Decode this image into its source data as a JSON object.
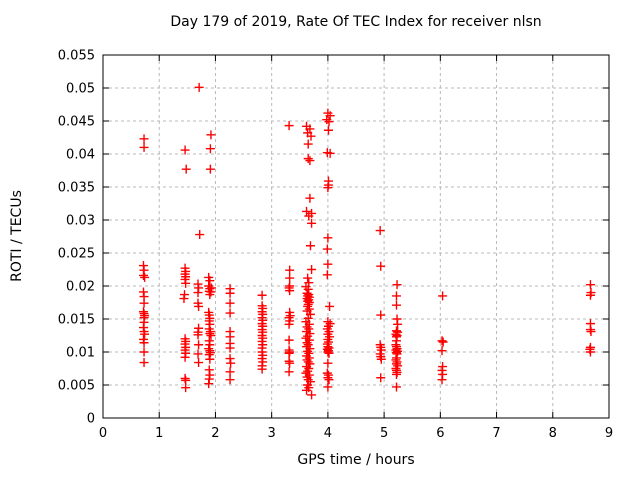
{
  "chart_data": {
    "type": "scatter",
    "title": "Day 179 of 2019, Rate Of TEC Index for receiver nlsn",
    "xlabel": "GPS time / hours",
    "ylabel": "ROTI / TECUs",
    "xlim": [
      0,
      9
    ],
    "ylim": [
      0,
      0.055
    ],
    "x_ticks": [
      "0",
      "1",
      "2",
      "3",
      "4",
      "5",
      "6",
      "7",
      "8",
      "9"
    ],
    "y_ticks": [
      "0",
      "0.005",
      "0.01",
      "0.015",
      "0.02",
      "0.025",
      "0.03",
      "0.035",
      "0.04",
      "0.045",
      "0.05",
      "0.055"
    ],
    "grid": "dashed",
    "legend_position": "none",
    "marker": "plus",
    "marker_color": "#ff0000",
    "grid_color": "#b8b8b8",
    "border_color": "#000000",
    "series": [
      {
        "name": "ROTI",
        "points": [
          [
            0.73,
            0.0423
          ],
          [
            0.73,
            0.041
          ],
          [
            0.72,
            0.0231
          ],
          [
            0.73,
            0.0224
          ],
          [
            0.72,
            0.0216
          ],
          [
            0.74,
            0.0213
          ],
          [
            0.72,
            0.0191
          ],
          [
            0.73,
            0.0184
          ],
          [
            0.73,
            0.0174
          ],
          [
            0.72,
            0.0161
          ],
          [
            0.73,
            0.0158
          ],
          [
            0.74,
            0.0155
          ],
          [
            0.73,
            0.0152
          ],
          [
            0.73,
            0.0145
          ],
          [
            0.72,
            0.0137
          ],
          [
            0.73,
            0.0131
          ],
          [
            0.74,
            0.0127
          ],
          [
            0.72,
            0.0119
          ],
          [
            0.73,
            0.0114
          ],
          [
            0.73,
            0.01
          ],
          [
            0.73,
            0.0084
          ],
          [
            1.46,
            0.0406
          ],
          [
            1.48,
            0.0377
          ],
          [
            1.46,
            0.0227
          ],
          [
            1.47,
            0.0222
          ],
          [
            1.46,
            0.0218
          ],
          [
            1.47,
            0.0214
          ],
          [
            1.46,
            0.021
          ],
          [
            1.47,
            0.0204
          ],
          [
            1.45,
            0.0187
          ],
          [
            1.44,
            0.0181
          ],
          [
            1.46,
            0.012
          ],
          [
            1.47,
            0.0116
          ],
          [
            1.46,
            0.0112
          ],
          [
            1.47,
            0.0107
          ],
          [
            1.46,
            0.0103
          ],
          [
            1.47,
            0.0098
          ],
          [
            1.46,
            0.0092
          ],
          [
            1.46,
            0.006
          ],
          [
            1.47,
            0.0057
          ],
          [
            1.47,
            0.0046
          ],
          [
            1.71,
            0.0501
          ],
          [
            1.72,
            0.0278
          ],
          [
            1.69,
            0.0203
          ],
          [
            1.7,
            0.0197
          ],
          [
            1.69,
            0.019
          ],
          [
            1.69,
            0.0174
          ],
          [
            1.7,
            0.0169
          ],
          [
            1.7,
            0.0136
          ],
          [
            1.69,
            0.013
          ],
          [
            1.69,
            0.0126
          ],
          [
            1.7,
            0.0111
          ],
          [
            1.69,
            0.0097
          ],
          [
            1.7,
            0.0084
          ],
          [
            1.92,
            0.0429
          ],
          [
            1.91,
            0.0408
          ],
          [
            1.91,
            0.0377
          ],
          [
            1.88,
            0.0213
          ],
          [
            1.9,
            0.0208
          ],
          [
            1.88,
            0.02
          ],
          [
            1.93,
            0.0197
          ],
          [
            1.9,
            0.0196
          ],
          [
            1.89,
            0.0192
          ],
          [
            1.92,
            0.0191
          ],
          [
            1.9,
            0.0187
          ],
          [
            1.88,
            0.016
          ],
          [
            1.89,
            0.0156
          ],
          [
            1.9,
            0.0151
          ],
          [
            1.89,
            0.0147
          ],
          [
            1.9,
            0.0142
          ],
          [
            1.89,
            0.0135
          ],
          [
            1.91,
            0.0131
          ],
          [
            1.9,
            0.0128
          ],
          [
            1.92,
            0.0125
          ],
          [
            1.89,
            0.0117
          ],
          [
            1.9,
            0.0111
          ],
          [
            1.88,
            0.0105
          ],
          [
            1.9,
            0.0102
          ],
          [
            1.91,
            0.0099
          ],
          [
            1.89,
            0.0096
          ],
          [
            1.9,
            0.0089
          ],
          [
            1.89,
            0.0073
          ],
          [
            1.9,
            0.0065
          ],
          [
            1.89,
            0.0059
          ],
          [
            1.88,
            0.0052
          ],
          [
            2.26,
            0.0196
          ],
          [
            2.26,
            0.0189
          ],
          [
            2.26,
            0.0174
          ],
          [
            2.26,
            0.0159
          ],
          [
            2.26,
            0.0131
          ],
          [
            2.26,
            0.0123
          ],
          [
            2.26,
            0.0113
          ],
          [
            2.26,
            0.0106
          ],
          [
            2.26,
            0.009
          ],
          [
            2.27,
            0.0083
          ],
          [
            2.26,
            0.007
          ],
          [
            2.26,
            0.0058
          ],
          [
            2.83,
            0.0186
          ],
          [
            2.83,
            0.017
          ],
          [
            2.84,
            0.0166
          ],
          [
            2.83,
            0.0161
          ],
          [
            2.84,
            0.0157
          ],
          [
            2.83,
            0.0152
          ],
          [
            2.84,
            0.0148
          ],
          [
            2.83,
            0.0143
          ],
          [
            2.84,
            0.0139
          ],
          [
            2.83,
            0.0134
          ],
          [
            2.84,
            0.013
          ],
          [
            2.83,
            0.0125
          ],
          [
            2.84,
            0.0121
          ],
          [
            2.83,
            0.0116
          ],
          [
            2.84,
            0.0111
          ],
          [
            2.83,
            0.0106
          ],
          [
            2.83,
            0.01
          ],
          [
            2.84,
            0.0095
          ],
          [
            2.83,
            0.009
          ],
          [
            2.84,
            0.0085
          ],
          [
            2.83,
            0.0079
          ],
          [
            2.83,
            0.0074
          ],
          [
            3.31,
            0.0443
          ],
          [
            3.32,
            0.0224
          ],
          [
            3.32,
            0.0212
          ],
          [
            3.32,
            0.02
          ],
          [
            3.31,
            0.0197
          ],
          [
            3.32,
            0.0193
          ],
          [
            3.32,
            0.016
          ],
          [
            3.33,
            0.0155
          ],
          [
            3.31,
            0.0152
          ],
          [
            3.32,
            0.0147
          ],
          [
            3.31,
            0.0142
          ],
          [
            3.31,
            0.0118
          ],
          [
            3.31,
            0.0103
          ],
          [
            3.32,
            0.01
          ],
          [
            3.31,
            0.0098
          ],
          [
            3.31,
            0.0086
          ],
          [
            3.32,
            0.0083
          ],
          [
            3.31,
            0.007
          ],
          [
            3.62,
            0.0442
          ],
          [
            3.68,
            0.0438
          ],
          [
            3.64,
            0.0432
          ],
          [
            3.7,
            0.0427
          ],
          [
            3.65,
            0.0415
          ],
          [
            3.65,
            0.0393
          ],
          [
            3.68,
            0.039
          ],
          [
            3.68,
            0.0333
          ],
          [
            3.62,
            0.0313
          ],
          [
            3.71,
            0.031
          ],
          [
            3.66,
            0.0306
          ],
          [
            3.71,
            0.0295
          ],
          [
            3.69,
            0.0261
          ],
          [
            3.71,
            0.0225
          ],
          [
            3.64,
            0.0212
          ],
          [
            3.66,
            0.0205
          ],
          [
            3.61,
            0.0199
          ],
          [
            3.65,
            0.0195
          ],
          [
            3.63,
            0.0189
          ],
          [
            3.66,
            0.0187
          ],
          [
            3.64,
            0.0185
          ],
          [
            3.67,
            0.0183
          ],
          [
            3.63,
            0.0181
          ],
          [
            3.66,
            0.0179
          ],
          [
            3.64,
            0.0177
          ],
          [
            3.67,
            0.0175
          ],
          [
            3.65,
            0.0172
          ],
          [
            3.64,
            0.0169
          ],
          [
            3.67,
            0.0165
          ],
          [
            3.63,
            0.0162
          ],
          [
            3.69,
            0.0157
          ],
          [
            3.65,
            0.0151
          ],
          [
            3.61,
            0.0146
          ],
          [
            3.67,
            0.0142
          ],
          [
            3.63,
            0.0138
          ],
          [
            3.66,
            0.0135
          ],
          [
            3.62,
            0.0131
          ],
          [
            3.68,
            0.0128
          ],
          [
            3.64,
            0.0124
          ],
          [
            3.61,
            0.0121
          ],
          [
            3.67,
            0.0118
          ],
          [
            3.63,
            0.0114
          ],
          [
            3.65,
            0.0111
          ],
          [
            3.62,
            0.0108
          ],
          [
            3.68,
            0.0105
          ],
          [
            3.64,
            0.0101
          ],
          [
            3.66,
            0.0098
          ],
          [
            3.62,
            0.0094
          ],
          [
            3.67,
            0.0091
          ],
          [
            3.63,
            0.0088
          ],
          [
            3.65,
            0.0085
          ],
          [
            3.68,
            0.0082
          ],
          [
            3.62,
            0.0078
          ],
          [
            3.66,
            0.0075
          ],
          [
            3.64,
            0.0071
          ],
          [
            3.61,
            0.0068
          ],
          [
            3.67,
            0.0065
          ],
          [
            3.63,
            0.0062
          ],
          [
            3.65,
            0.0058
          ],
          [
            3.69,
            0.0055
          ],
          [
            3.64,
            0.005
          ],
          [
            3.66,
            0.0046
          ],
          [
            3.62,
            0.0042
          ],
          [
            3.71,
            0.0035
          ],
          [
            4.0,
            0.0462
          ],
          [
            4.04,
            0.0458
          ],
          [
            3.98,
            0.0452
          ],
          [
            4.02,
            0.0449
          ],
          [
            4.01,
            0.0436
          ],
          [
            3.99,
            0.0402
          ],
          [
            4.04,
            0.0401
          ],
          [
            4.01,
            0.0359
          ],
          [
            4.01,
            0.0353
          ],
          [
            4.0,
            0.0349
          ],
          [
            4.0,
            0.0273
          ],
          [
            3.99,
            0.0256
          ],
          [
            4.0,
            0.0233
          ],
          [
            3.99,
            0.0217
          ],
          [
            4.03,
            0.0169
          ],
          [
            4.0,
            0.0146
          ],
          [
            4.04,
            0.0143
          ],
          [
            4.01,
            0.0139
          ],
          [
            3.99,
            0.0135
          ],
          [
            4.02,
            0.0131
          ],
          [
            4.0,
            0.0127
          ],
          [
            4.03,
            0.0123
          ],
          [
            4.0,
            0.0119
          ],
          [
            4.01,
            0.0115
          ],
          [
            3.99,
            0.0112
          ],
          [
            4.0,
            0.0108
          ],
          [
            4.02,
            0.0106
          ],
          [
            3.99,
            0.0104
          ],
          [
            4.01,
            0.0102
          ],
          [
            4.0,
            0.01
          ],
          [
            4.02,
            0.0098
          ],
          [
            4.0,
            0.0083
          ],
          [
            3.99,
            0.0068
          ],
          [
            4.01,
            0.0065
          ],
          [
            4.0,
            0.0061
          ],
          [
            4.02,
            0.0058
          ],
          [
            4.0,
            0.0047
          ],
          [
            4.93,
            0.0284
          ],
          [
            4.94,
            0.023
          ],
          [
            4.94,
            0.0156
          ],
          [
            4.93,
            0.0111
          ],
          [
            4.94,
            0.0107
          ],
          [
            4.95,
            0.0103
          ],
          [
            4.93,
            0.0097
          ],
          [
            4.94,
            0.0093
          ],
          [
            4.95,
            0.0089
          ],
          [
            4.94,
            0.0061
          ],
          [
            5.23,
            0.0202
          ],
          [
            5.22,
            0.0185
          ],
          [
            5.22,
            0.0171
          ],
          [
            5.23,
            0.015
          ],
          [
            5.24,
            0.0142
          ],
          [
            5.22,
            0.0132
          ],
          [
            5.24,
            0.013
          ],
          [
            5.21,
            0.0127
          ],
          [
            5.23,
            0.0125
          ],
          [
            5.22,
            0.0123
          ],
          [
            5.22,
            0.0117
          ],
          [
            5.21,
            0.0111
          ],
          [
            5.22,
            0.0108
          ],
          [
            5.23,
            0.0105
          ],
          [
            5.21,
            0.0103
          ],
          [
            5.24,
            0.0101
          ],
          [
            5.22,
            0.0099
          ],
          [
            5.23,
            0.0097
          ],
          [
            5.22,
            0.0091
          ],
          [
            5.21,
            0.0088
          ],
          [
            5.23,
            0.0085
          ],
          [
            5.22,
            0.0082
          ],
          [
            5.24,
            0.0079
          ],
          [
            5.21,
            0.0075
          ],
          [
            5.22,
            0.0072
          ],
          [
            5.23,
            0.0069
          ],
          [
            5.22,
            0.0066
          ],
          [
            5.22,
            0.0047
          ],
          [
            6.04,
            0.0185
          ],
          [
            6.03,
            0.0117
          ],
          [
            6.05,
            0.0115
          ],
          [
            6.03,
            0.0102
          ],
          [
            6.04,
            0.0078
          ],
          [
            6.03,
            0.0072
          ],
          [
            6.04,
            0.0066
          ],
          [
            6.03,
            0.0058
          ],
          [
            8.67,
            0.0202
          ],
          [
            8.68,
            0.019
          ],
          [
            8.67,
            0.0186
          ],
          [
            8.67,
            0.0143
          ],
          [
            8.67,
            0.0134
          ],
          [
            8.68,
            0.0131
          ],
          [
            8.67,
            0.0107
          ],
          [
            8.66,
            0.0104
          ],
          [
            8.67,
            0.01
          ]
        ]
      }
    ]
  }
}
